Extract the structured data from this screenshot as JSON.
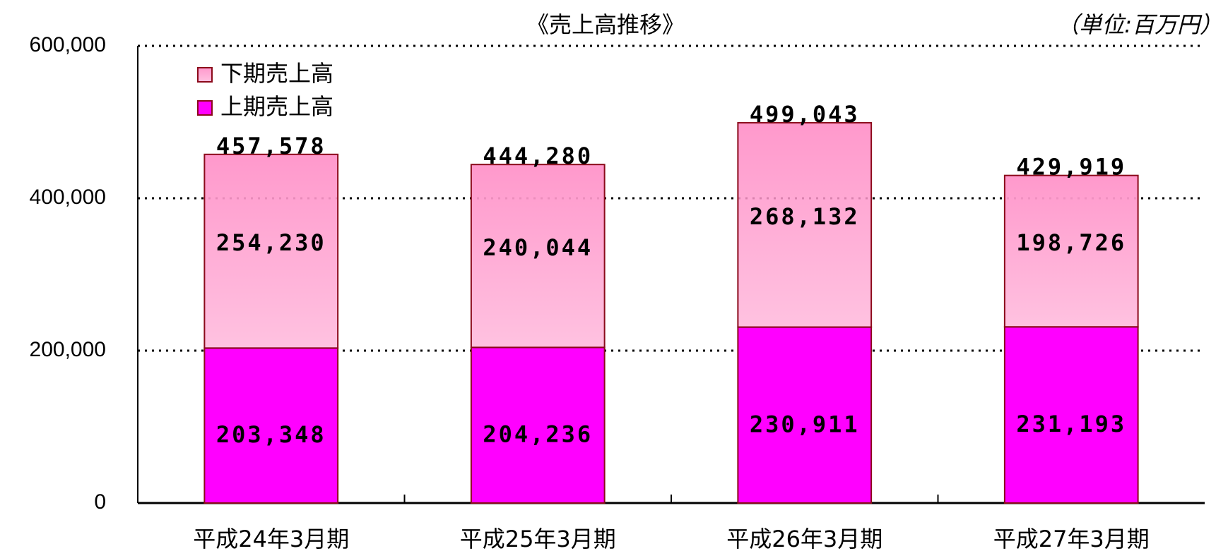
{
  "chart_data": {
    "type": "stacked-bar",
    "title": "《売上高推移》",
    "unit_note": "（単位:百万円）",
    "categories": [
      "平成24年3月期",
      "平成25年3月期",
      "平成26年3月期",
      "平成27年3月期"
    ],
    "series": [
      {
        "name": "上期売上高",
        "color": "#ff00ff",
        "gradient": false,
        "values": [
          203348,
          204236,
          230911,
          231193
        ],
        "value_labels": [
          "203,348",
          "204,236",
          "230,911",
          "231,193"
        ]
      },
      {
        "name": "下期売上高",
        "color": "#ff99cc",
        "gradient": true,
        "values": [
          254230,
          240044,
          268132,
          198726
        ],
        "value_labels": [
          "254,230",
          "240,044",
          "268,132",
          "198,726"
        ]
      }
    ],
    "totals": [
      457578,
      444280,
      499043,
      429919
    ],
    "total_labels": [
      "457,578",
      "444,280",
      "499,043",
      "429,919"
    ],
    "border_color": "#8b0a1a",
    "ylim": [
      0,
      600000
    ],
    "yticks": [
      0,
      {
        "value": 200000,
        "label": "200,000"
      },
      {
        "value": 400000,
        "label": "400,000"
      },
      {
        "value": 600000,
        "label": "600,000"
      }
    ],
    "grid": true
  }
}
